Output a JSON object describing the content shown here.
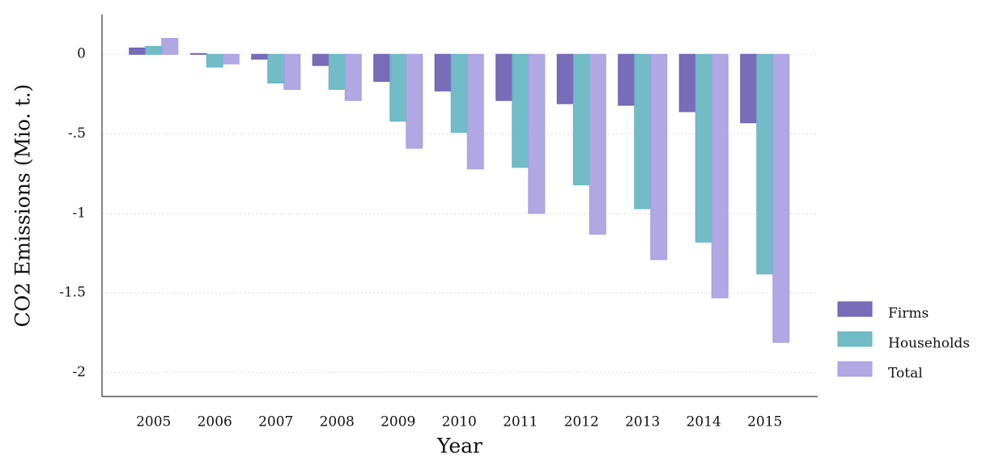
{
  "chart_data": {
    "type": "bar",
    "y_label": "CO2 Emissions (Mio. t.)",
    "x_label": "Year",
    "categories": [
      "2005",
      "2006",
      "2007",
      "2008",
      "2009",
      "2010",
      "2011",
      "2012",
      "2013",
      "2014",
      "2015"
    ],
    "series": [
      {
        "name": "Firms",
        "color": "#6a5cb0",
        "values": [
          0.04,
          0.005,
          -0.03,
          -0.07,
          -0.17,
          -0.23,
          -0.29,
          -0.31,
          -0.32,
          -0.36,
          -0.43
        ]
      },
      {
        "name": "Households",
        "color": "#62b5c0",
        "values": [
          0.05,
          -0.08,
          -0.18,
          -0.22,
          -0.42,
          -0.49,
          -0.71,
          -0.82,
          -0.97,
          -1.18,
          -1.38
        ]
      },
      {
        "name": "Total",
        "color": "#a89de0",
        "values": [
          0.1,
          -0.06,
          -0.22,
          -0.29,
          -0.59,
          -0.72,
          -1.0,
          -1.13,
          -1.29,
          -1.53,
          -1.81
        ]
      }
    ],
    "ylim": [
      -2.15,
      0.25
    ],
    "yticks": [
      0,
      {
        "value": -0.5,
        "label": "-.5"
      },
      -1,
      -1.5,
      -2
    ],
    "grid": true,
    "legend": "right"
  }
}
